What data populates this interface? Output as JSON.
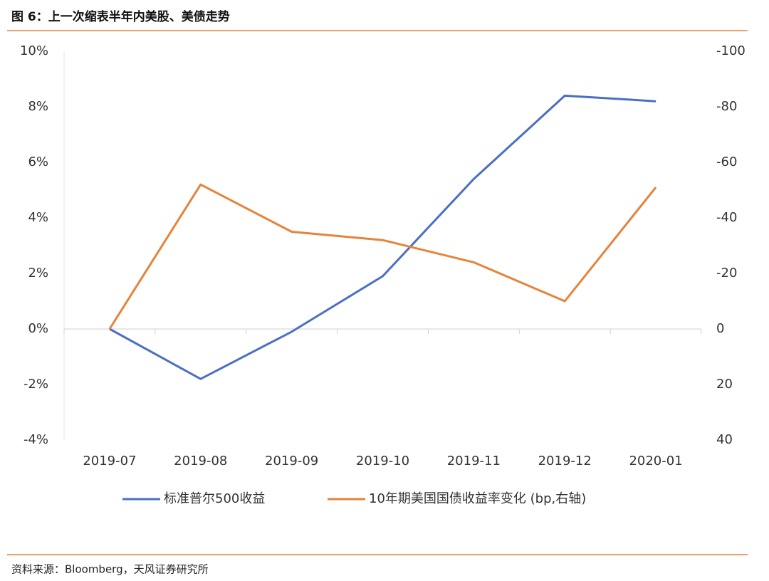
{
  "chart_data": {
    "type": "line",
    "title": "图 6：上一次缩表半年内美股、美债走势",
    "source": "资料来源：Bloomberg，天风证券研究所",
    "categories": [
      "2019-07",
      "2019-08",
      "2019-09",
      "2019-10",
      "2019-11",
      "2019-12",
      "2020-01"
    ],
    "series": [
      {
        "name": "标准普尔500收益",
        "color": "#4a6fc5",
        "values": [
          0,
          -1.8,
          -0.1,
          1.9,
          5.4,
          8.4,
          8.2
        ]
      },
      {
        "name": "10年期美国国债收益率变化 (bp,右轴)",
        "color": "#e6833b",
        "axis": "y2",
        "values": [
          0,
          -52,
          -35,
          -32,
          -24,
          -10,
          -51
        ]
      }
    ],
    "ylim": [
      -4,
      10
    ],
    "yticks": [
      {
        "value": -4,
        "label": "-4%"
      },
      {
        "value": -2,
        "label": "-2%"
      },
      {
        "value": 0,
        "label": "0%"
      },
      {
        "value": 2,
        "label": "2%"
      },
      {
        "value": 4,
        "label": "4%"
      },
      {
        "value": 6,
        "label": "6%"
      },
      {
        "value": 8,
        "label": "8%"
      },
      {
        "value": 10,
        "label": "10%"
      }
    ],
    "y2lim": [
      40,
      -100
    ],
    "y2ticks": [
      40,
      20,
      0,
      -20,
      -40,
      -60,
      -80,
      -100
    ],
    "legend": "bottom"
  }
}
